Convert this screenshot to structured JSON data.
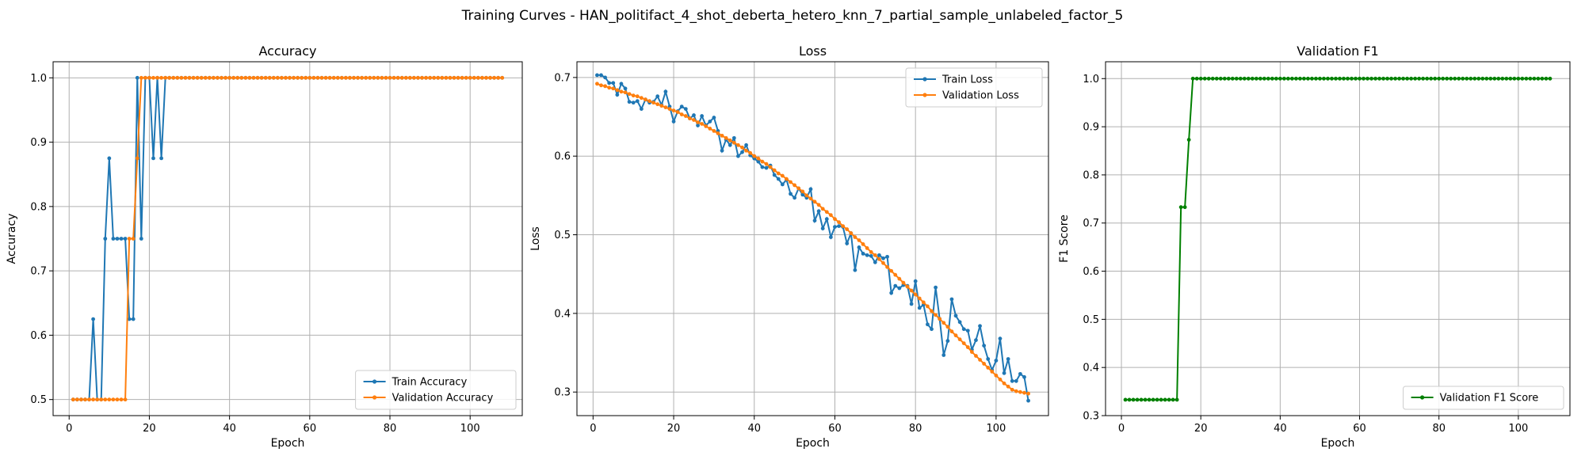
{
  "figure": {
    "title": "Training Curves - HAN_politifact_4_shot_deberta_hetero_knn_7_partial_sample_unlabeled_factor_5"
  },
  "chart_data": [
    {
      "type": "line",
      "title": "Accuracy",
      "xlabel": "Epoch",
      "ylabel": "Accuracy",
      "xlim": [
        -4,
        113
      ],
      "ylim": [
        0.475,
        1.025
      ],
      "xticks": [
        0,
        20,
        40,
        60,
        80,
        100
      ],
      "yticks": [
        0.5,
        0.6,
        0.7,
        0.8,
        0.9,
        1.0
      ],
      "grid": true,
      "legend": "lower-right",
      "series": [
        {
          "name": "Train Accuracy",
          "color": "#1f77b4",
          "x_start": 1,
          "values": [
            0.5,
            0.5,
            0.5,
            0.5,
            0.5,
            0.625,
            0.5,
            0.5,
            0.75,
            0.875,
            0.75,
            0.75,
            0.75,
            0.75,
            0.625,
            0.625,
            1.0,
            0.75,
            1.0,
            1.0,
            0.875,
            1.0,
            0.875,
            1.0,
            1.0,
            1.0,
            1.0,
            1.0,
            1.0,
            1.0,
            1.0,
            1.0,
            1.0,
            1.0,
            1.0,
            1.0,
            1.0,
            1.0,
            1.0,
            1.0,
            1.0,
            1.0,
            1.0,
            1.0,
            1.0,
            1.0,
            1.0,
            1.0,
            1.0,
            1.0,
            1.0,
            1.0,
            1.0,
            1.0,
            1.0,
            1.0,
            1.0,
            1.0,
            1.0,
            1.0,
            1.0,
            1.0,
            1.0,
            1.0,
            1.0,
            1.0,
            1.0,
            1.0,
            1.0,
            1.0,
            1.0,
            1.0,
            1.0,
            1.0,
            1.0,
            1.0,
            1.0,
            1.0,
            1.0,
            1.0,
            1.0,
            1.0,
            1.0,
            1.0,
            1.0,
            1.0,
            1.0,
            1.0,
            1.0,
            1.0,
            1.0,
            1.0,
            1.0,
            1.0,
            1.0,
            1.0,
            1.0,
            1.0,
            1.0,
            1.0,
            1.0,
            1.0,
            1.0,
            1.0,
            1.0,
            1.0,
            1.0,
            1.0
          ]
        },
        {
          "name": "Validation Accuracy",
          "color": "#ff7f0e",
          "x_start": 1,
          "values": [
            0.5,
            0.5,
            0.5,
            0.5,
            0.5,
            0.5,
            0.5,
            0.5,
            0.5,
            0.5,
            0.5,
            0.5,
            0.5,
            0.5,
            0.75,
            0.75,
            0.875,
            1.0,
            1.0,
            1.0,
            1.0,
            1.0,
            1.0,
            1.0,
            1.0,
            1.0,
            1.0,
            1.0,
            1.0,
            1.0,
            1.0,
            1.0,
            1.0,
            1.0,
            1.0,
            1.0,
            1.0,
            1.0,
            1.0,
            1.0,
            1.0,
            1.0,
            1.0,
            1.0,
            1.0,
            1.0,
            1.0,
            1.0,
            1.0,
            1.0,
            1.0,
            1.0,
            1.0,
            1.0,
            1.0,
            1.0,
            1.0,
            1.0,
            1.0,
            1.0,
            1.0,
            1.0,
            1.0,
            1.0,
            1.0,
            1.0,
            1.0,
            1.0,
            1.0,
            1.0,
            1.0,
            1.0,
            1.0,
            1.0,
            1.0,
            1.0,
            1.0,
            1.0,
            1.0,
            1.0,
            1.0,
            1.0,
            1.0,
            1.0,
            1.0,
            1.0,
            1.0,
            1.0,
            1.0,
            1.0,
            1.0,
            1.0,
            1.0,
            1.0,
            1.0,
            1.0,
            1.0,
            1.0,
            1.0,
            1.0,
            1.0,
            1.0,
            1.0,
            1.0,
            1.0,
            1.0,
            1.0,
            1.0
          ]
        }
      ]
    },
    {
      "type": "line",
      "title": "Loss",
      "xlabel": "Epoch",
      "ylabel": "Loss",
      "xlim": [
        -4,
        113
      ],
      "ylim": [
        0.27,
        0.72
      ],
      "xticks": [
        0,
        20,
        40,
        60,
        80,
        100
      ],
      "yticks": [
        0.3,
        0.4,
        0.5,
        0.6,
        0.7
      ],
      "grid": true,
      "legend": "top-right",
      "series": [
        {
          "name": "Train Loss",
          "color": "#1f77b4",
          "x_start": 1,
          "values": [
            0.703,
            0.703,
            0.7,
            0.693,
            0.693,
            0.678,
            0.692,
            0.686,
            0.669,
            0.668,
            0.67,
            0.66,
            0.672,
            0.668,
            0.669,
            0.676,
            0.665,
            0.682,
            0.663,
            0.644,
            0.657,
            0.663,
            0.66,
            0.648,
            0.652,
            0.639,
            0.651,
            0.639,
            0.644,
            0.649,
            0.632,
            0.607,
            0.621,
            0.614,
            0.623,
            0.6,
            0.605,
            0.614,
            0.601,
            0.597,
            0.593,
            0.586,
            0.585,
            0.588,
            0.576,
            0.571,
            0.564,
            0.57,
            0.552,
            0.547,
            0.559,
            0.551,
            0.547,
            0.558,
            0.518,
            0.53,
            0.508,
            0.52,
            0.497,
            0.51,
            0.511,
            0.51,
            0.489,
            0.502,
            0.455,
            0.484,
            0.476,
            0.474,
            0.473,
            0.465,
            0.474,
            0.47,
            0.472,
            0.426,
            0.435,
            0.432,
            0.436,
            0.435,
            0.412,
            0.441,
            0.407,
            0.411,
            0.386,
            0.38,
            0.433,
            0.393,
            0.347,
            0.365,
            0.418,
            0.397,
            0.389,
            0.38,
            0.378,
            0.354,
            0.366,
            0.384,
            0.359,
            0.342,
            0.328,
            0.34,
            0.368,
            0.324,
            0.342,
            0.314,
            0.314,
            0.323,
            0.319,
            0.289
          ]
        },
        {
          "name": "Validation Loss",
          "color": "#ff7f0e",
          "x_start": 1,
          "values": [
            0.692,
            0.69,
            0.689,
            0.687,
            0.686,
            0.684,
            0.682,
            0.681,
            0.679,
            0.677,
            0.676,
            0.674,
            0.672,
            0.67,
            0.668,
            0.666,
            0.664,
            0.662,
            0.66,
            0.658,
            0.656,
            0.653,
            0.651,
            0.648,
            0.646,
            0.643,
            0.641,
            0.638,
            0.635,
            0.632,
            0.629,
            0.626,
            0.623,
            0.62,
            0.617,
            0.614,
            0.611,
            0.607,
            0.604,
            0.6,
            0.597,
            0.593,
            0.59,
            0.586,
            0.582,
            0.578,
            0.575,
            0.571,
            0.567,
            0.563,
            0.559,
            0.555,
            0.55,
            0.546,
            0.542,
            0.538,
            0.533,
            0.529,
            0.525,
            0.52,
            0.516,
            0.511,
            0.507,
            0.502,
            0.497,
            0.493,
            0.488,
            0.483,
            0.478,
            0.474,
            0.469,
            0.464,
            0.459,
            0.454,
            0.449,
            0.444,
            0.439,
            0.434,
            0.429,
            0.424,
            0.419,
            0.414,
            0.409,
            0.403,
            0.398,
            0.393,
            0.388,
            0.383,
            0.377,
            0.372,
            0.367,
            0.362,
            0.357,
            0.351,
            0.346,
            0.341,
            0.336,
            0.331,
            0.326,
            0.321,
            0.316,
            0.311,
            0.307,
            0.303,
            0.301,
            0.3,
            0.299,
            0.298
          ]
        }
      ]
    },
    {
      "type": "line",
      "title": "Validation F1",
      "xlabel": "Epoch",
      "ylabel": "F1 Score",
      "xlim": [
        -4,
        113
      ],
      "ylim": [
        0.3,
        1.035
      ],
      "xticks": [
        0,
        20,
        40,
        60,
        80,
        100
      ],
      "yticks": [
        0.3,
        0.4,
        0.5,
        0.6,
        0.7,
        0.8,
        0.9,
        1.0
      ],
      "grid": true,
      "legend": "lower-right",
      "series": [
        {
          "name": "Validation F1 Score",
          "color": "#008000",
          "x_start": 1,
          "values": [
            0.333,
            0.333,
            0.333,
            0.333,
            0.333,
            0.333,
            0.333,
            0.333,
            0.333,
            0.333,
            0.333,
            0.333,
            0.333,
            0.333,
            0.733,
            0.733,
            0.873,
            1.0,
            1.0,
            1.0,
            1.0,
            1.0,
            1.0,
            1.0,
            1.0,
            1.0,
            1.0,
            1.0,
            1.0,
            1.0,
            1.0,
            1.0,
            1.0,
            1.0,
            1.0,
            1.0,
            1.0,
            1.0,
            1.0,
            1.0,
            1.0,
            1.0,
            1.0,
            1.0,
            1.0,
            1.0,
            1.0,
            1.0,
            1.0,
            1.0,
            1.0,
            1.0,
            1.0,
            1.0,
            1.0,
            1.0,
            1.0,
            1.0,
            1.0,
            1.0,
            1.0,
            1.0,
            1.0,
            1.0,
            1.0,
            1.0,
            1.0,
            1.0,
            1.0,
            1.0,
            1.0,
            1.0,
            1.0,
            1.0,
            1.0,
            1.0,
            1.0,
            1.0,
            1.0,
            1.0,
            1.0,
            1.0,
            1.0,
            1.0,
            1.0,
            1.0,
            1.0,
            1.0,
            1.0,
            1.0,
            1.0,
            1.0,
            1.0,
            1.0,
            1.0,
            1.0,
            1.0,
            1.0,
            1.0,
            1.0,
            1.0,
            1.0,
            1.0,
            1.0,
            1.0,
            1.0,
            1.0,
            1.0
          ]
        }
      ]
    }
  ]
}
